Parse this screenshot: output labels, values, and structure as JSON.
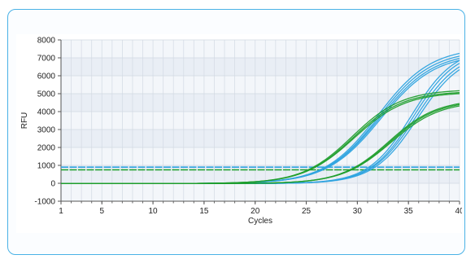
{
  "chart_data": {
    "type": "line",
    "xlabel": "Cycles",
    "ylabel": "RFU",
    "xlim": [
      1,
      40
    ],
    "ylim": [
      -1000,
      8000
    ],
    "xticks": [
      1,
      5,
      10,
      15,
      20,
      25,
      30,
      35,
      40
    ],
    "yticks": [
      -1000,
      0,
      1000,
      2000,
      3000,
      4000,
      5000,
      6000,
      7000,
      8000
    ],
    "grid": true,
    "colors": {
      "blue": "#2ea3df",
      "green": "#1f9e2c"
    },
    "thresholds": [
      {
        "color": "blue",
        "value": 900
      },
      {
        "color": "green",
        "value": 750
      }
    ],
    "series": [
      {
        "color": "blue",
        "plateau": 7600,
        "midpoint": 32.0,
        "slope": 2.6
      },
      {
        "color": "blue",
        "plateau": 7450,
        "midpoint": 32.1,
        "slope": 2.6
      },
      {
        "color": "blue",
        "plateau": 7350,
        "midpoint": 32.2,
        "slope": 2.65
      },
      {
        "color": "blue",
        "plateau": 7250,
        "midpoint": 32.3,
        "slope": 2.65
      },
      {
        "color": "blue",
        "plateau": 7600,
        "midpoint": 35.3,
        "slope": 2.1
      },
      {
        "color": "blue",
        "plateau": 7500,
        "midpoint": 35.5,
        "slope": 2.1
      },
      {
        "color": "blue",
        "plateau": 7400,
        "midpoint": 35.7,
        "slope": 2.15
      },
      {
        "color": "blue",
        "plateau": 7300,
        "midpoint": 35.9,
        "slope": 2.15
      },
      {
        "color": "green",
        "plateau": 5250,
        "midpoint": 29.5,
        "slope": 2.45
      },
      {
        "color": "green",
        "plateau": 5150,
        "midpoint": 29.6,
        "slope": 2.45
      },
      {
        "color": "green",
        "plateau": 5100,
        "midpoint": 29.7,
        "slope": 2.5
      },
      {
        "color": "green",
        "plateau": 4700,
        "midpoint": 33.1,
        "slope": 2.35
      },
      {
        "color": "green",
        "plateau": 4650,
        "midpoint": 33.2,
        "slope": 2.35
      },
      {
        "color": "green",
        "plateau": 4600,
        "midpoint": 33.3,
        "slope": 2.4
      }
    ]
  }
}
